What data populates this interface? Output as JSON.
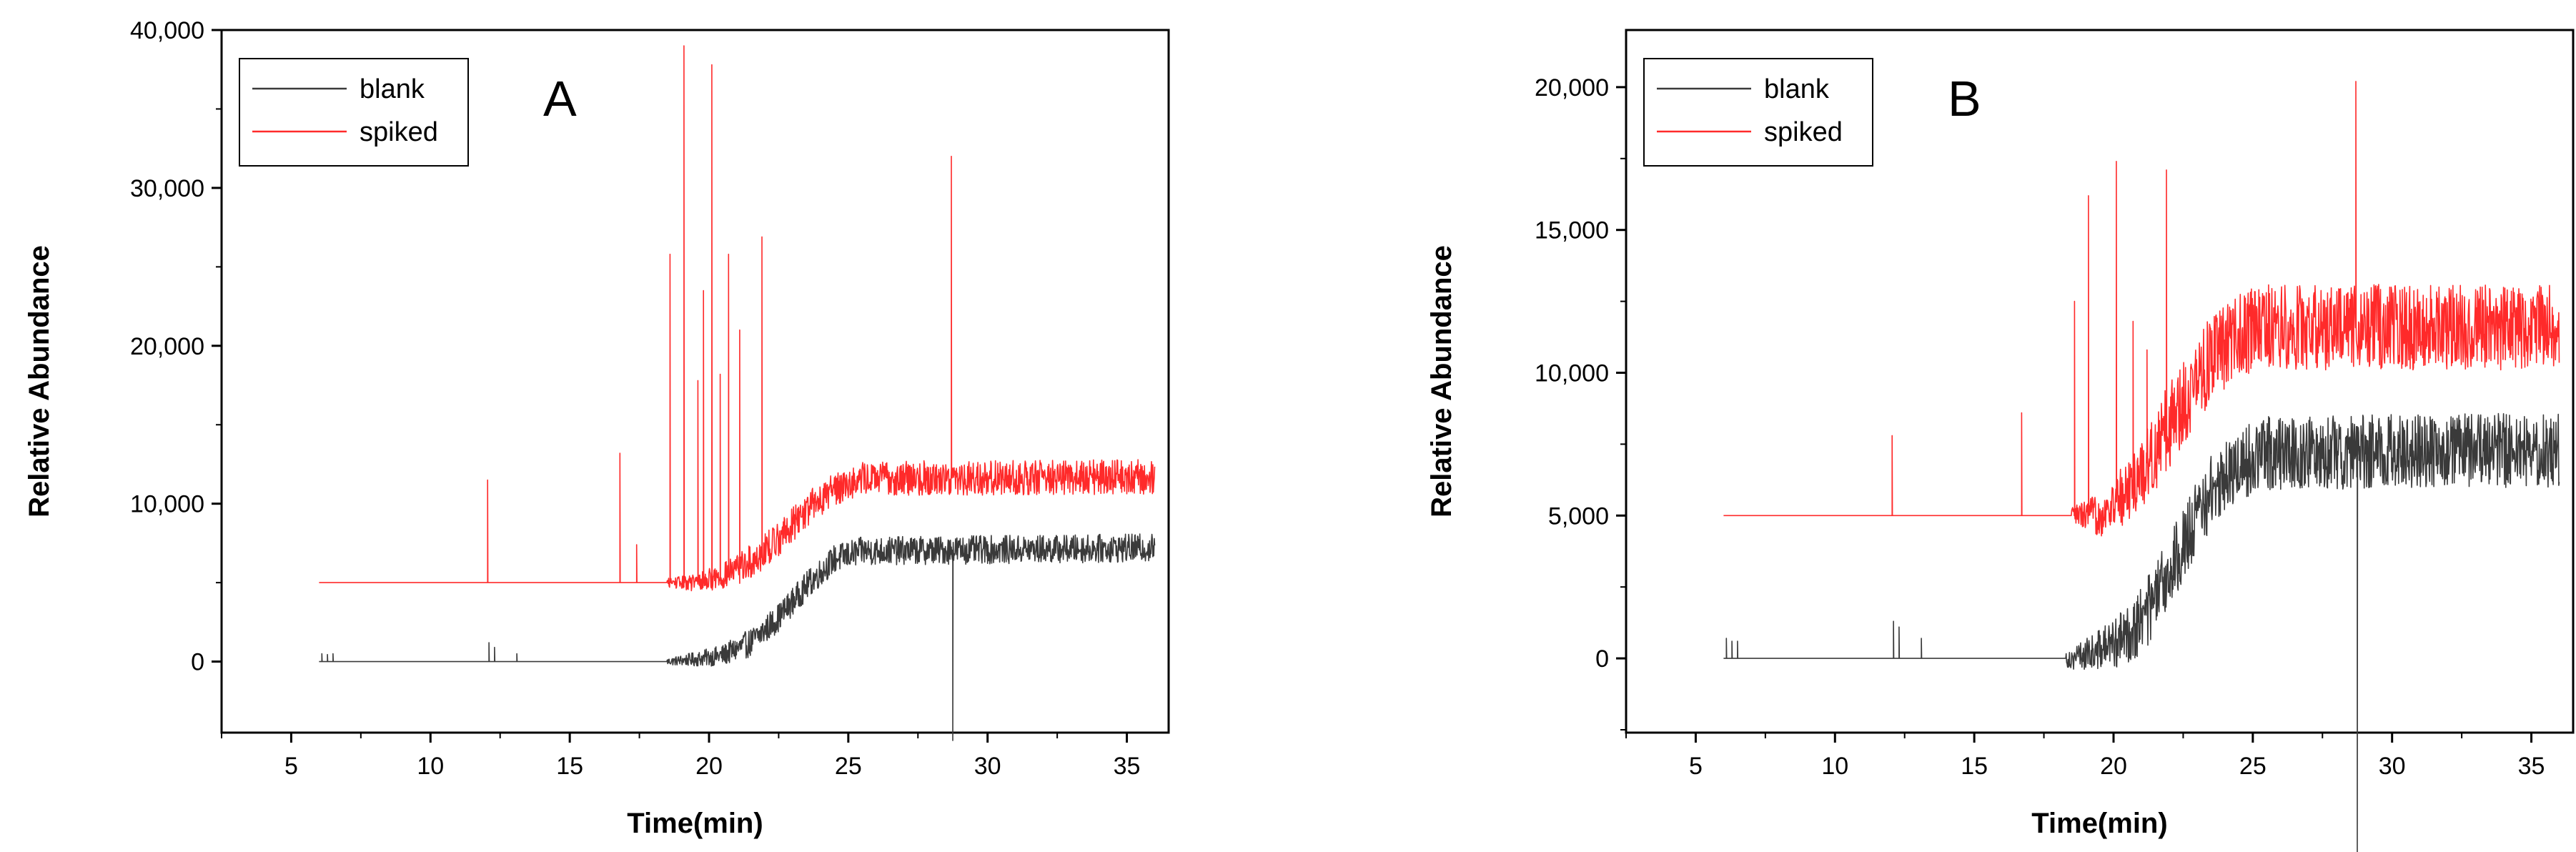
{
  "chart_data": [
    {
      "type": "line",
      "panel_label": "A",
      "xlabel": "Time(min)",
      "ylabel": "Relative Abundance",
      "xlim": [
        2.5,
        36.5
      ],
      "ylim": [
        -4500,
        40000
      ],
      "x_ticks": [
        5,
        10,
        15,
        20,
        25,
        30,
        35
      ],
      "x_tick_labels": [
        "5",
        "10",
        "15",
        "20",
        "25",
        "30",
        "35"
      ],
      "y_ticks": [
        0,
        10000,
        20000,
        30000,
        40000
      ],
      "y_tick_labels": [
        "0",
        "10,000",
        "20,000",
        "30,000",
        "40,000"
      ],
      "grid": false,
      "legend_position": "top-left",
      "series": [
        {
          "name": "blank",
          "color": "#3a3a3a",
          "x_range": [
            6.0,
            36.0
          ],
          "shape": [
            [
              6.0,
              0
            ],
            [
              18.5,
              0
            ],
            [
              19.5,
              150
            ],
            [
              20.5,
              400
            ],
            [
              21.5,
              1200
            ],
            [
              22.5,
              2800
            ],
            [
              23.5,
              4800
            ],
            [
              24.5,
              6500
            ],
            [
              25.5,
              7000
            ],
            [
              36.0,
              7200
            ]
          ],
          "noise_amplitude": 900,
          "noise_start": 18.5,
          "spikes": [
            [
              6.1,
              500
            ],
            [
              6.3,
              450
            ],
            [
              6.5,
              500
            ],
            [
              12.1,
              1200
            ],
            [
              12.3,
              900
            ],
            [
              13.1,
              500
            ],
            [
              28.75,
              -5000
            ]
          ]
        },
        {
          "name": "spiked",
          "color": "#ff2a2a",
          "x_range": [
            6.0,
            36.0
          ],
          "shape": [
            [
              6.0,
              5000
            ],
            [
              19.5,
              5000
            ],
            [
              20.5,
              5400
            ],
            [
              21.5,
              6300
            ],
            [
              22.5,
              7800
            ],
            [
              23.5,
              9600
            ],
            [
              24.5,
              11000
            ],
            [
              25.5,
              11600
            ],
            [
              36.0,
              11700
            ]
          ],
          "noise_amplitude": 1100,
          "noise_start": 18.5,
          "spikes": [
            [
              12.05,
              11500
            ],
            [
              16.8,
              13200
            ],
            [
              17.4,
              7400
            ],
            [
              18.6,
              25800
            ],
            [
              19.1,
              39000
            ],
            [
              19.6,
              17800
            ],
            [
              19.8,
              23500
            ],
            [
              20.1,
              37800
            ],
            [
              20.4,
              18200
            ],
            [
              20.7,
              25800
            ],
            [
              21.1,
              21000
            ],
            [
              21.9,
              26900
            ],
            [
              28.7,
              32000
            ]
          ]
        }
      ]
    },
    {
      "type": "line",
      "panel_label": "B",
      "xlabel": "Time(min)",
      "ylabel": "Relative Abundance",
      "xlim": [
        2.5,
        36.5
      ],
      "ylim": [
        -2600,
        22000
      ],
      "x_ticks": [
        5,
        10,
        15,
        20,
        25,
        30,
        35
      ],
      "x_tick_labels": [
        "5",
        "10",
        "15",
        "20",
        "25",
        "30",
        "35"
      ],
      "y_ticks": [
        0,
        5000,
        10000,
        15000,
        20000
      ],
      "y_tick_labels": [
        "0",
        "5,000",
        "10,000",
        "15,000",
        "20,000"
      ],
      "grid": false,
      "legend_position": "top-left",
      "series": [
        {
          "name": "blank",
          "color": "#3a3a3a",
          "x_range": [
            6.0,
            36.0
          ],
          "shape": [
            [
              6.0,
              0
            ],
            [
              18.5,
              0
            ],
            [
              19.5,
              300
            ],
            [
              20.5,
              800
            ],
            [
              21.5,
              2000
            ],
            [
              22.5,
              4000
            ],
            [
              23.5,
              5800
            ],
            [
              24.5,
              6800
            ],
            [
              25.5,
              7200
            ],
            [
              36.0,
              7300
            ]
          ],
          "noise_amplitude": 1300,
          "noise_start": 18.3,
          "spikes": [
            [
              6.1,
              700
            ],
            [
              6.3,
              600
            ],
            [
              6.5,
              600
            ],
            [
              12.1,
              1300
            ],
            [
              12.3,
              1100
            ],
            [
              13.1,
              700
            ],
            [
              28.75,
              -7000
            ]
          ]
        },
        {
          "name": "spiked",
          "color": "#ff2a2a",
          "x_range": [
            6.0,
            36.0
          ],
          "shape": [
            [
              6.0,
              5000
            ],
            [
              19.5,
              5000
            ],
            [
              20.5,
              5800
            ],
            [
              21.5,
              7300
            ],
            [
              22.5,
              9000
            ],
            [
              23.5,
              10500
            ],
            [
              24.5,
              11300
            ],
            [
              25.5,
              11600
            ],
            [
              36.0,
              11600
            ]
          ],
          "noise_amplitude": 1500,
          "noise_start": 18.5,
          "spikes": [
            [
              12.05,
              7800
            ],
            [
              16.7,
              8600
            ],
            [
              18.6,
              12500
            ],
            [
              19.1,
              16200
            ],
            [
              20.1,
              17400
            ],
            [
              20.7,
              11800
            ],
            [
              21.2,
              10800
            ],
            [
              21.9,
              17100
            ],
            [
              28.7,
              20200
            ]
          ]
        }
      ]
    }
  ]
}
